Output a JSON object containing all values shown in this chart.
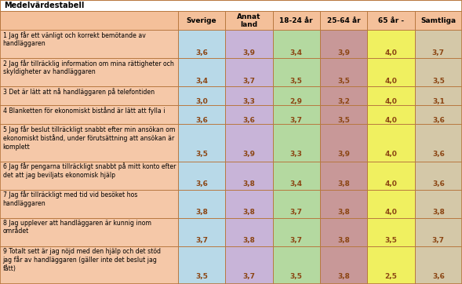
{
  "title": "Medelvärdestabell",
  "columns": [
    "Sverige",
    "Annat\nland",
    "18-24 år",
    "25-64 år",
    "65 år -",
    "Samtliga"
  ],
  "rows": [
    {
      "label": "1 Jag får ett vänligt och korrekt bemötande av\nhandläggaren",
      "values": [
        3.6,
        3.9,
        3.4,
        3.9,
        4.0,
        3.7
      ],
      "nlines": 2
    },
    {
      "label": "2 Jag får tillräcklig information om mina rättigheter och\nskyldigheter av handläggaren",
      "values": [
        3.4,
        3.7,
        3.5,
        3.5,
        4.0,
        3.5
      ],
      "nlines": 2
    },
    {
      "label": "3 Det är lätt att nå handläggaren på telefontiden",
      "values": [
        3.0,
        3.3,
        2.9,
        3.2,
        4.0,
        3.1
      ],
      "nlines": 1
    },
    {
      "label": "4 Blanketten för ekonomiskt bistånd är lätt att fylla i",
      "values": [
        3.6,
        3.6,
        3.7,
        3.5,
        4.0,
        3.6
      ],
      "nlines": 1
    },
    {
      "label": "5 Jag får beslut tillräckligt snabbt efter min ansökan om\nekonomiskt bistånd, under förutsättning att ansökan är\nkomplett",
      "values": [
        3.5,
        3.9,
        3.3,
        3.9,
        4.0,
        3.6
      ],
      "nlines": 3
    },
    {
      "label": "6 Jag får pengarna tillräckligt snabbt på mitt konto efter\ndet att jag beviljats ekonomisk hjälp",
      "values": [
        3.6,
        3.8,
        3.4,
        3.8,
        4.0,
        3.6
      ],
      "nlines": 2
    },
    {
      "label": "7 Jag får tillräckligt med tid vid besöket hos\nhandläggaren",
      "values": [
        3.8,
        3.8,
        3.7,
        3.8,
        4.0,
        3.8
      ],
      "nlines": 2
    },
    {
      "label": "8 Jag upplever att handläggaren är kunnig inom\nområdet",
      "values": [
        3.7,
        3.8,
        3.7,
        3.8,
        3.5,
        3.7
      ],
      "nlines": 2
    },
    {
      "label": "9 Totalt sett är jag nöjd med den hjälp och det stöd\njag får av handläggaren (gäller inte det beslut jag\nfått)",
      "values": [
        3.5,
        3.7,
        3.5,
        3.8,
        2.5,
        3.6
      ],
      "nlines": 3
    }
  ],
  "col_colors": [
    "#b8d9e8",
    "#c8b4d8",
    "#b4d9a0",
    "#c89898",
    "#f0f060",
    "#d4c8a8"
  ],
  "header_bg": "#f4c09a",
  "title_bg": "#ffffff",
  "row_label_bg": "#f5c8a8",
  "border_color": "#b87840",
  "value_color": "#8B4513",
  "label_color": "#000000",
  "col_header_color": "#000000",
  "figsize": [
    5.89,
    3.62
  ],
  "dpi": 100
}
